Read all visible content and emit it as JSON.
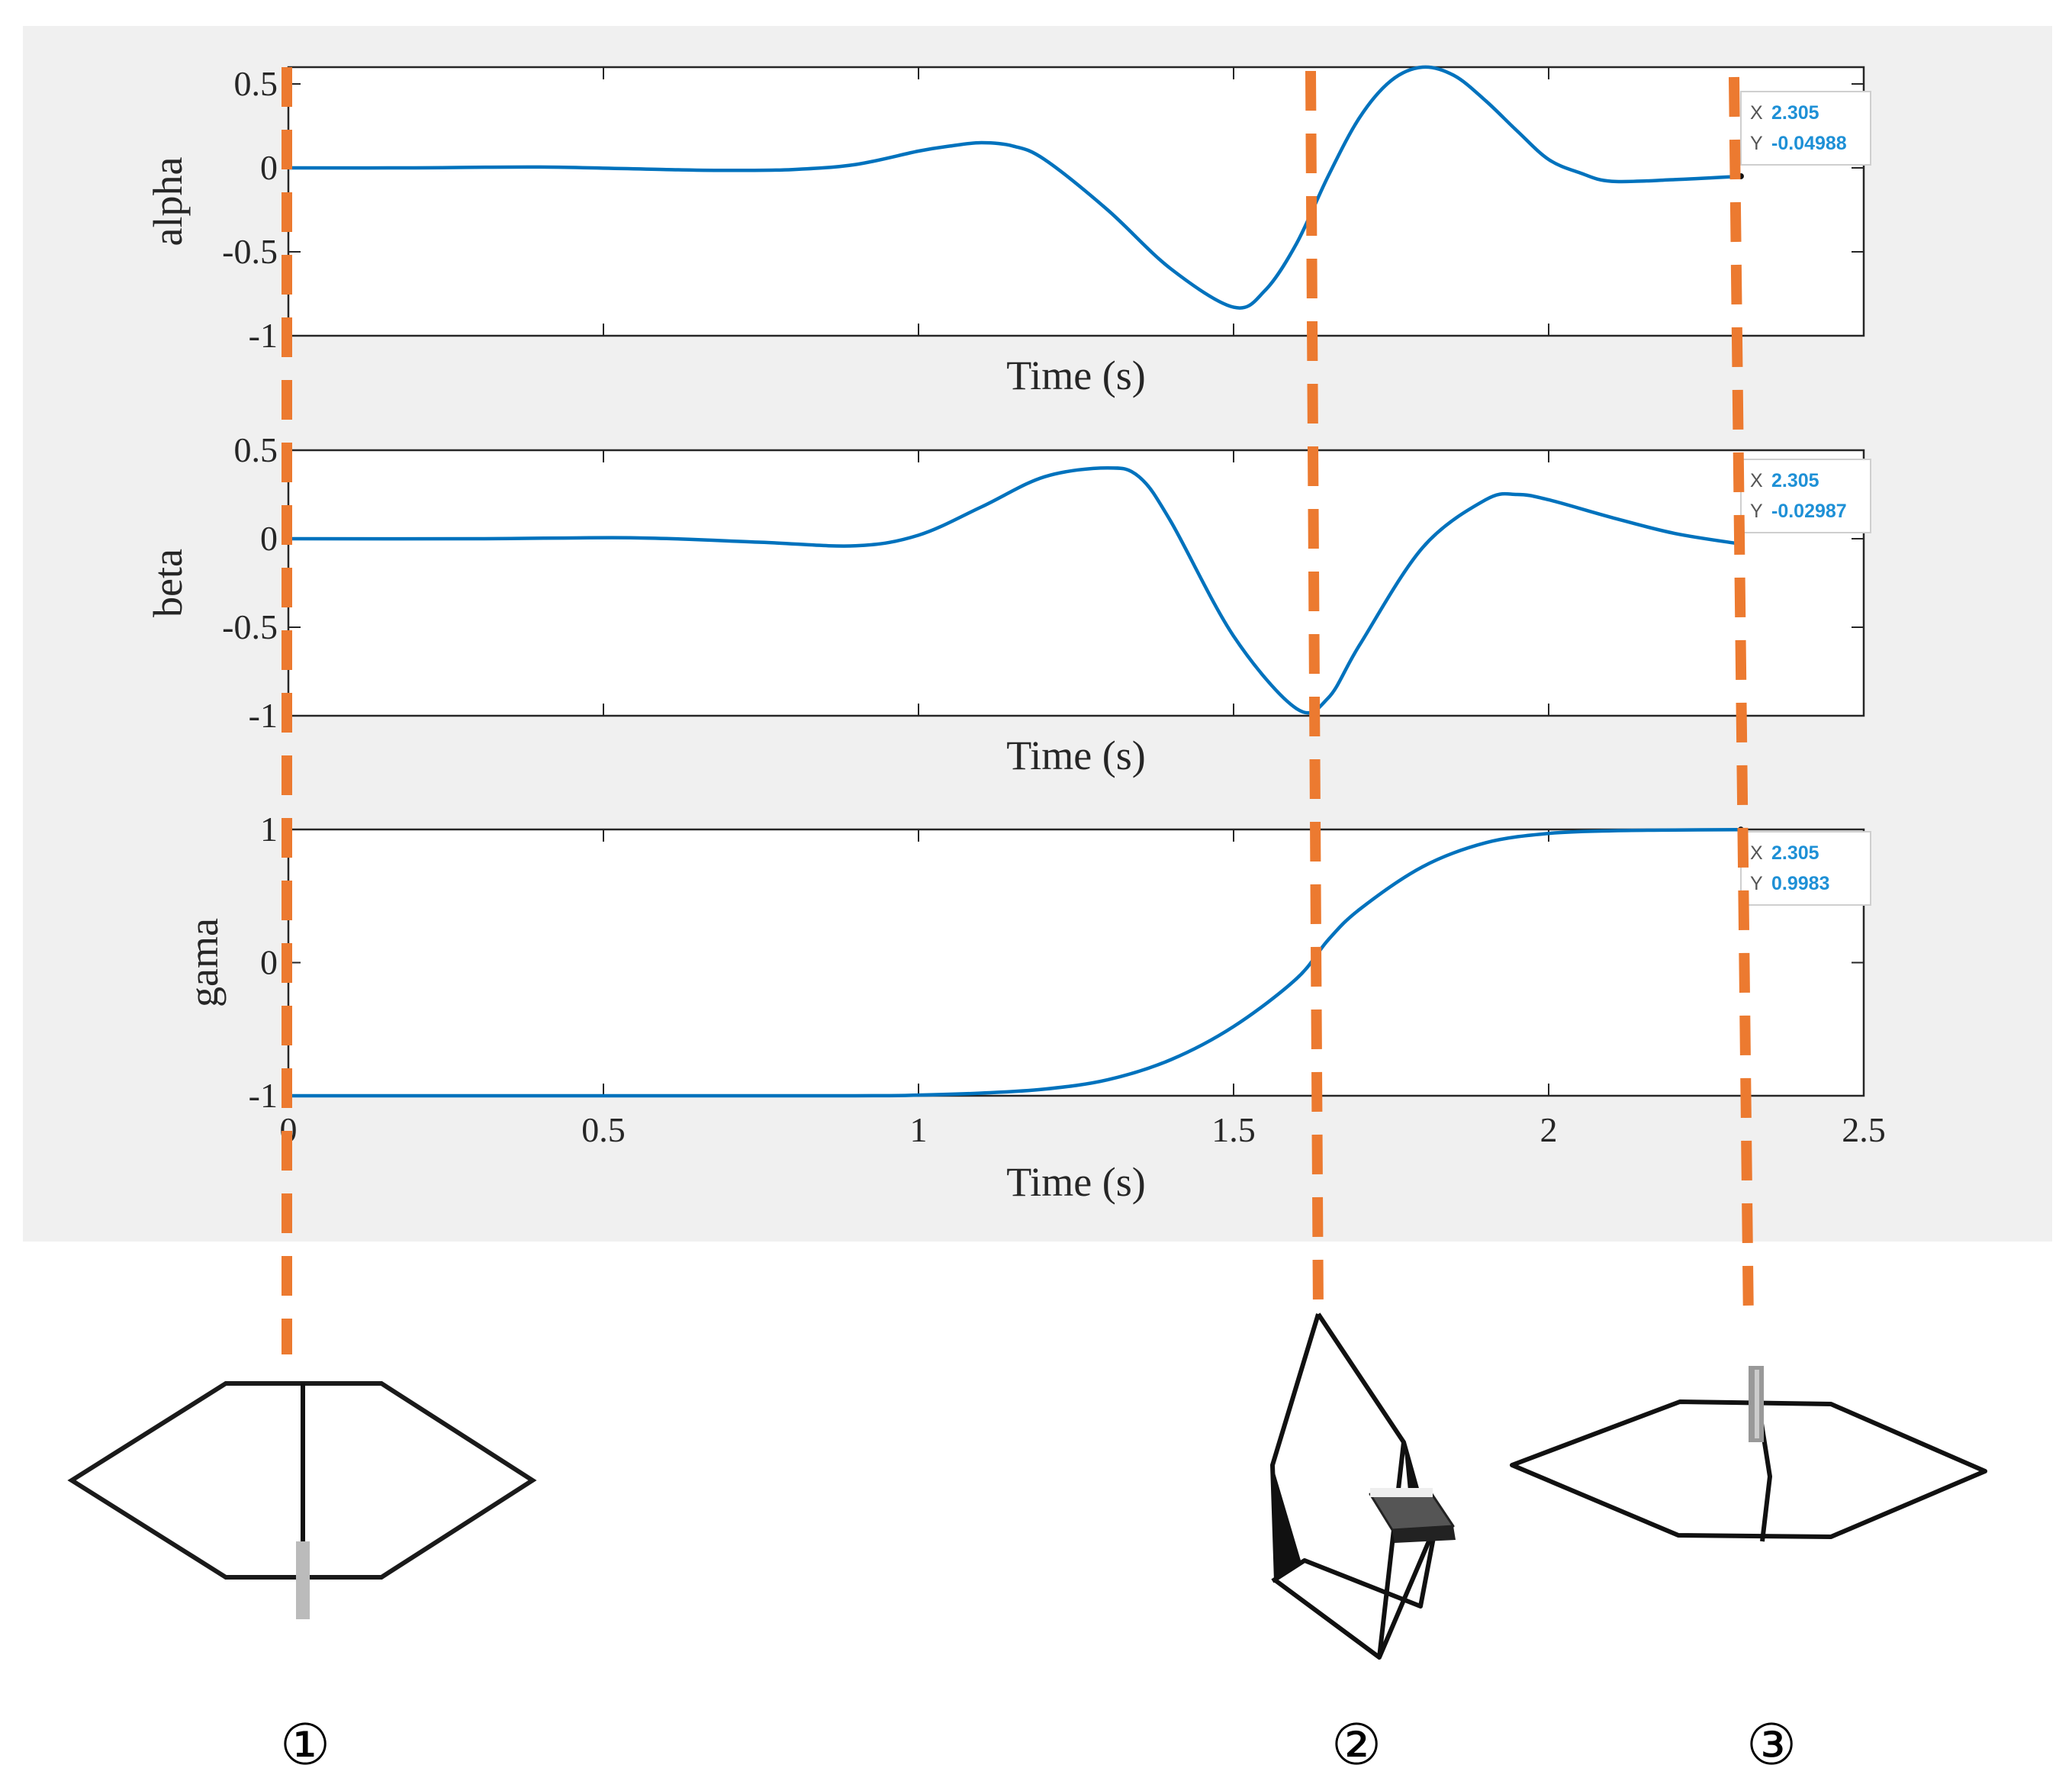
{
  "chart_data": [
    {
      "type": "line",
      "ylabel": "alpha",
      "xlabel": "Time (s)",
      "xlim": [
        0,
        2.5
      ],
      "ylim": [
        -1,
        0.6
      ],
      "xticks": [],
      "yticks": [
        "0.5",
        "0",
        "-0.5",
        "-1"
      ],
      "ytick_values": [
        0.5,
        0,
        -0.5,
        -1
      ],
      "line_color": "#0072BD",
      "series": [
        {
          "x": [
            0,
            0.2,
            0.4,
            0.6,
            0.7,
            0.8,
            0.9,
            1.0,
            1.05,
            1.1,
            1.15,
            1.2,
            1.3,
            1.4,
            1.5,
            1.55,
            1.6,
            1.65,
            1.7,
            1.75,
            1.8,
            1.85,
            1.9,
            1.95,
            2.0,
            2.05,
            2.1,
            2.2,
            2.305
          ],
          "y": [
            0,
            0,
            0.005,
            -0.01,
            -0.015,
            -0.01,
            0.02,
            0.1,
            0.13,
            0.15,
            0.13,
            0.05,
            -0.25,
            -0.6,
            -0.83,
            -0.73,
            -0.45,
            -0.05,
            0.3,
            0.52,
            0.6,
            0.55,
            0.4,
            0.22,
            0.05,
            -0.03,
            -0.08,
            -0.07,
            -0.04988
          ]
        }
      ],
      "datatip": {
        "x_label": "X",
        "x_value": "2.305",
        "y_label": "Y",
        "y_value": "-0.04988"
      }
    },
    {
      "type": "line",
      "ylabel": "beta",
      "xlabel": "Time (s)",
      "xlim": [
        0,
        2.5
      ],
      "ylim": [
        -1,
        0.5
      ],
      "xticks": [],
      "yticks": [
        "0.5",
        "0",
        "-0.5",
        "-1"
      ],
      "ytick_values": [
        0.5,
        0,
        -0.5,
        -1
      ],
      "line_color": "#0072BD",
      "series": [
        {
          "x": [
            0,
            0.3,
            0.55,
            0.75,
            0.9,
            1.0,
            1.1,
            1.2,
            1.3,
            1.35,
            1.4,
            1.5,
            1.6,
            1.65,
            1.7,
            1.8,
            1.9,
            1.95,
            2.0,
            2.1,
            2.2,
            2.305
          ],
          "y": [
            0,
            0,
            0.005,
            -0.02,
            -0.04,
            0.02,
            0.18,
            0.35,
            0.4,
            0.35,
            0.1,
            -0.55,
            -0.96,
            -0.9,
            -0.6,
            -0.05,
            0.22,
            0.25,
            0.22,
            0.12,
            0.03,
            -0.02987
          ]
        }
      ],
      "datatip": {
        "x_label": "X",
        "x_value": "2.305",
        "y_label": "Y",
        "y_value": "-0.02987"
      }
    },
    {
      "type": "line",
      "ylabel": "gama",
      "xlabel": "Time (s)",
      "xlim": [
        0,
        2.5
      ],
      "ylim": [
        -1,
        1
      ],
      "xticks": [
        "0",
        "0.5",
        "1",
        "1.5",
        "2",
        "2.5"
      ],
      "xtick_values": [
        0,
        0.5,
        1,
        1.5,
        2,
        2.5
      ],
      "yticks": [
        "1",
        "0",
        "-1"
      ],
      "ytick_values": [
        1,
        0,
        -1
      ],
      "line_color": "#0072BD",
      "series": [
        {
          "x": [
            0,
            0.5,
            0.9,
            1.0,
            1.1,
            1.2,
            1.3,
            1.4,
            1.5,
            1.6,
            1.65,
            1.7,
            1.8,
            1.9,
            2.0,
            2.1,
            2.2,
            2.305
          ],
          "y": [
            -1,
            -1,
            -1,
            -0.995,
            -0.98,
            -0.95,
            -0.88,
            -0.73,
            -0.48,
            -0.12,
            0.17,
            0.4,
            0.72,
            0.9,
            0.97,
            0.99,
            0.996,
            0.9983
          ]
        }
      ],
      "datatip": {
        "x_label": "X",
        "x_value": "2.305",
        "y_label": "Y",
        "y_value": "0.9983"
      }
    }
  ],
  "markers": [
    "①",
    "②",
    "③"
  ],
  "colors": {
    "panel_bg": "#f0f0f0",
    "guide": "#ec7a30",
    "line": "#0072BD",
    "axes": "#262626"
  }
}
